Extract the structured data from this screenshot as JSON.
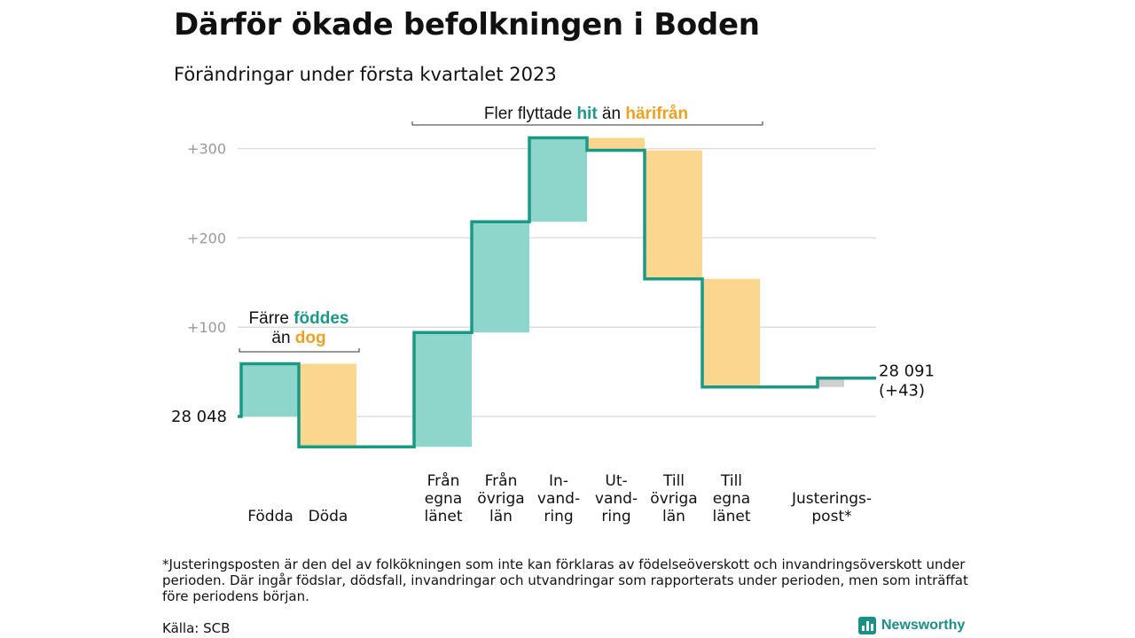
{
  "title": "Därför ökade befolkningen i Boden",
  "subtitle": "Förändringar under första kvartalet 2023",
  "colors": {
    "teal": "#1a9985",
    "teal_fill": "#8ed6cc",
    "orange_fill": "#fbd68e",
    "orange_text": "#f0a020",
    "gray_fill": "#cfcfcf",
    "grid": "#dddddd",
    "tick": "#999999"
  },
  "chart_data": {
    "type": "bar",
    "subtype": "waterfall",
    "start_value": 28048,
    "start_label": "28 048",
    "end_label": "28 091",
    "end_change": "(+43)",
    "y_ticks": [
      {
        "value": 100,
        "label": "+100"
      },
      {
        "value": 200,
        "label": "+200"
      },
      {
        "value": 300,
        "label": "+300"
      }
    ],
    "ylim": [
      -35,
      310
    ],
    "categories": [
      {
        "label_lines": [
          "Födda"
        ],
        "value": 59,
        "kind": "in"
      },
      {
        "label_lines": [
          "Döda"
        ],
        "value": -93,
        "kind": "out"
      },
      {
        "label_lines": [
          "Från",
          "egna",
          "länet"
        ],
        "value": 128,
        "kind": "in"
      },
      {
        "label_lines": [
          "Från",
          "övriga",
          "län"
        ],
        "value": 124,
        "kind": "in"
      },
      {
        "label_lines": [
          "In-",
          "vand-",
          "ring"
        ],
        "value": 94,
        "kind": "in"
      },
      {
        "label_lines": [
          "Ut-",
          "vand-",
          "ring"
        ],
        "value": -14,
        "kind": "out"
      },
      {
        "label_lines": [
          "Till",
          "övriga",
          "län"
        ],
        "value": -144,
        "kind": "out"
      },
      {
        "label_lines": [
          "Till",
          "egna",
          "länet"
        ],
        "value": -121,
        "kind": "out"
      },
      {
        "label_lines": [
          "Justerings-",
          "post*"
        ],
        "value": 10,
        "kind": "adj"
      }
    ],
    "annotations": {
      "births": {
        "prefix": "Färre ",
        "hl1": "föddes",
        "line2_prefix": "än ",
        "hl2": "dog"
      },
      "migration": {
        "prefix": "Fler flyttade ",
        "hl1": "hit",
        "mid": " än ",
        "hl2": "härifrån"
      }
    },
    "grid": true
  },
  "footnote": "*Justeringsposten är den del av folkökningen som inte kan förklaras av födelseöverskott och invandringsöverskott under perioden. Där ingår födslar, dödsfall, invandringar och utvandringar som rapporterats under perioden, men som inträffat före periodens början.",
  "source": "Källa: SCB",
  "brand": {
    "name": "Newsworthy",
    "icon": "bar-chart-icon"
  }
}
